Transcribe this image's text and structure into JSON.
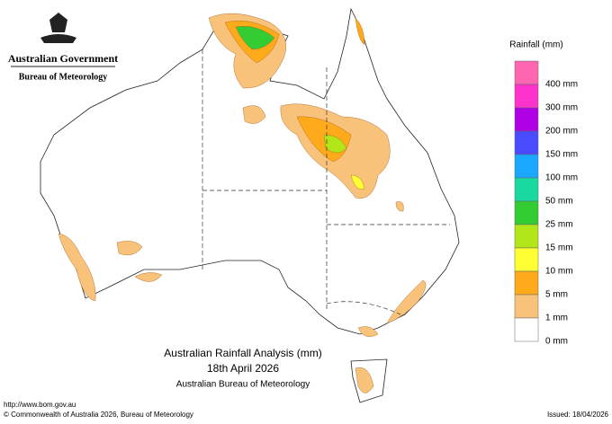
{
  "header": {
    "org": "Australian Government",
    "agency": "Bureau of Meteorology"
  },
  "legend": {
    "title": "Rainfall (mm)",
    "colors": [
      "#ff66b2",
      "#ff33cc",
      "#b000e6",
      "#4a4aff",
      "#1aa8ff",
      "#19d9a0",
      "#33cc33",
      "#b3e619",
      "#ffff33",
      "#ffaa1a",
      "#f9c27a",
      "#ffffff"
    ],
    "labels": [
      "400 mm",
      "300 mm",
      "200 mm",
      "150 mm",
      "100 mm",
      "50 mm",
      "25 mm",
      "15 mm",
      "10 mm",
      "5 mm",
      "1 mm",
      "0 mm"
    ]
  },
  "caption": {
    "line1": "Australian Rainfall Analysis (mm)",
    "line2": "18th April 2026",
    "line3": "Australian Bureau of Meteorology"
  },
  "footer": {
    "url": "http://www.bom.gov.au",
    "copyright": "© Commonwealth of Australia 2026, Bureau of Meteorology",
    "issued": "Issued: 18/04/2026"
  }
}
